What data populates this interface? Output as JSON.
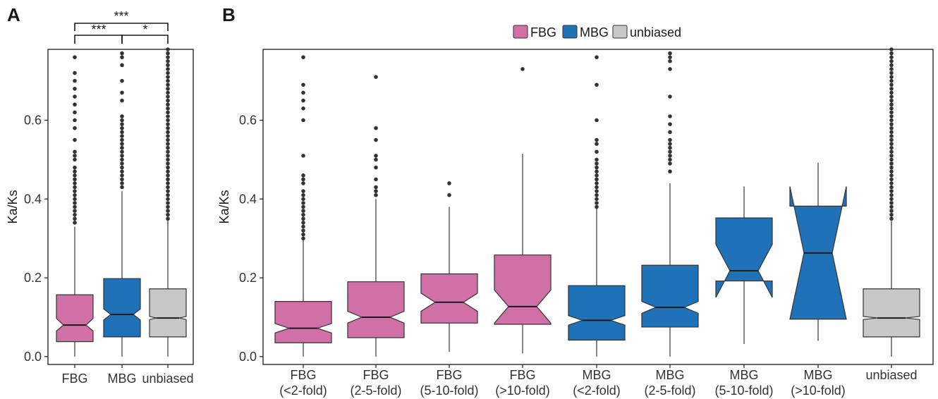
{
  "colors": {
    "FBG": "#d070a6",
    "MBG": "#1f72b8",
    "unbiased": "#c8c8c8",
    "outline": "#333333",
    "outlier": "#333333"
  },
  "panel_labels": [
    "A",
    "B"
  ],
  "legend": [
    "FBG",
    "MBG",
    "unbiased"
  ],
  "significance": [
    {
      "label": "***"
    },
    {
      "label": "***"
    },
    {
      "label": "*"
    }
  ],
  "chart_data": [
    {
      "type": "box",
      "panel": "A",
      "notched": true,
      "ylabel": "Ka/Ks",
      "ylim": [
        -0.02,
        0.78
      ],
      "yticks": [
        0.0,
        0.2,
        0.4,
        0.6
      ],
      "ytick_labels": [
        "0.0",
        "0.2",
        "0.4",
        "0.6"
      ],
      "grid": false,
      "categories": [
        "FBG",
        "MBG",
        "unbiased"
      ],
      "boxes": [
        {
          "group": "FBG",
          "min": 0.0,
          "q1": 0.038,
          "notch_low": 0.065,
          "median": 0.08,
          "notch_high": 0.097,
          "q3": 0.157,
          "whisker_high": 0.33,
          "outliers": [
            0.34,
            0.35,
            0.36,
            0.37,
            0.38,
            0.39,
            0.4,
            0.41,
            0.42,
            0.43,
            0.44,
            0.45,
            0.46,
            0.47,
            0.48,
            0.5,
            0.51,
            0.52,
            0.55,
            0.58,
            0.6,
            0.62,
            0.64,
            0.66,
            0.68,
            0.7,
            0.72,
            0.76
          ]
        },
        {
          "group": "MBG",
          "min": 0.0,
          "q1": 0.05,
          "notch_low": 0.093,
          "median": 0.107,
          "notch_high": 0.121,
          "q3": 0.198,
          "whisker_high": 0.42,
          "outliers": [
            0.43,
            0.44,
            0.45,
            0.46,
            0.47,
            0.48,
            0.49,
            0.5,
            0.51,
            0.52,
            0.53,
            0.54,
            0.55,
            0.56,
            0.57,
            0.58,
            0.59,
            0.6,
            0.61,
            0.65,
            0.67,
            0.7,
            0.74,
            0.76,
            0.77
          ]
        },
        {
          "group": "unbiased",
          "min": 0.0,
          "q1": 0.05,
          "notch_low": 0.094,
          "median": 0.098,
          "notch_high": 0.102,
          "q3": 0.172,
          "whisker_high": 0.35,
          "outliers": [
            0.35,
            0.36,
            0.37,
            0.38,
            0.39,
            0.4,
            0.41,
            0.42,
            0.43,
            0.44,
            0.45,
            0.46,
            0.47,
            0.48,
            0.49,
            0.5,
            0.51,
            0.52,
            0.53,
            0.54,
            0.55,
            0.56,
            0.57,
            0.58,
            0.59,
            0.6,
            0.61,
            0.62,
            0.63,
            0.64,
            0.65,
            0.66,
            0.67,
            0.68,
            0.69,
            0.7,
            0.71,
            0.72,
            0.73,
            0.74,
            0.75,
            0.76,
            0.77,
            0.78
          ]
        }
      ]
    },
    {
      "type": "box",
      "panel": "B",
      "notched": true,
      "ylabel": "Ka/Ks",
      "ylim": [
        -0.02,
        0.78
      ],
      "yticks": [
        0.0,
        0.2,
        0.4,
        0.6
      ],
      "ytick_labels": [
        "0.0",
        "0.2",
        "0.4",
        "0.6"
      ],
      "grid": false,
      "legend_position": "top",
      "categories": [
        [
          "FBG",
          "(<2-fold)"
        ],
        [
          "FBG",
          "(2-5-fold)"
        ],
        [
          "FBG",
          "(5-10-fold)"
        ],
        [
          "FBG",
          "(>10-fold)"
        ],
        [
          "MBG",
          "(<2-fold)"
        ],
        [
          "MBG",
          "(2-5-fold)"
        ],
        [
          "MBG",
          "(5-10-fold)"
        ],
        [
          "MBG",
          "(>10-fold)"
        ],
        [
          "unbiased"
        ]
      ],
      "boxes": [
        {
          "group": "FBG",
          "min": 0.0,
          "q1": 0.035,
          "notch_low": 0.06,
          "median": 0.072,
          "notch_high": 0.084,
          "q3": 0.14,
          "whisker_high": 0.3,
          "outliers": [
            0.3,
            0.31,
            0.32,
            0.33,
            0.34,
            0.35,
            0.36,
            0.37,
            0.38,
            0.39,
            0.4,
            0.41,
            0.42,
            0.44,
            0.45,
            0.46,
            0.51,
            0.6,
            0.63,
            0.65,
            0.67,
            0.69,
            0.76
          ]
        },
        {
          "group": "FBG",
          "min": 0.0,
          "q1": 0.048,
          "notch_low": 0.085,
          "median": 0.1,
          "notch_high": 0.115,
          "q3": 0.19,
          "whisker_high": 0.4,
          "outliers": [
            0.41,
            0.42,
            0.43,
            0.45,
            0.48,
            0.5,
            0.51,
            0.55,
            0.58,
            0.71
          ]
        },
        {
          "group": "FBG",
          "min": 0.012,
          "q1": 0.085,
          "notch_low": 0.115,
          "median": 0.138,
          "notch_high": 0.161,
          "q3": 0.21,
          "whisker_high": 0.38,
          "outliers": [
            0.41,
            0.44
          ]
        },
        {
          "group": "FBG",
          "min": 0.008,
          "q1": 0.082,
          "notch_low": 0.085,
          "median": 0.127,
          "notch_high": 0.169,
          "q3": 0.258,
          "whisker_high": 0.515,
          "outliers": [
            0.73
          ]
        },
        {
          "group": "MBG",
          "min": 0.0,
          "q1": 0.042,
          "notch_low": 0.08,
          "median": 0.092,
          "notch_high": 0.104,
          "q3": 0.18,
          "whisker_high": 0.38,
          "outliers": [
            0.38,
            0.39,
            0.4,
            0.41,
            0.42,
            0.43,
            0.44,
            0.45,
            0.46,
            0.47,
            0.48,
            0.49,
            0.5,
            0.52,
            0.54,
            0.55,
            0.6,
            0.69,
            0.76
          ]
        },
        {
          "group": "MBG",
          "min": 0.0,
          "q1": 0.075,
          "notch_low": 0.11,
          "median": 0.125,
          "notch_high": 0.14,
          "q3": 0.232,
          "whisker_high": 0.44,
          "outliers": [
            0.47,
            0.49,
            0.5,
            0.51,
            0.52,
            0.53,
            0.54,
            0.55,
            0.57,
            0.59,
            0.61,
            0.66,
            0.73,
            0.75,
            0.76,
            0.77
          ]
        },
        {
          "group": "MBG",
          "min": 0.032,
          "q1": 0.192,
          "notch_low": 0.15,
          "median": 0.218,
          "notch_high": 0.285,
          "q3": 0.352,
          "whisker_high": 0.432,
          "outliers": []
        },
        {
          "group": "MBG",
          "min": 0.04,
          "q1": 0.095,
          "notch_low": 0.095,
          "median": 0.263,
          "notch_high": 0.432,
          "q3": 0.382,
          "whisker_high": 0.492,
          "outliers": []
        },
        {
          "group": "unbiased",
          "min": 0.0,
          "q1": 0.05,
          "notch_low": 0.094,
          "median": 0.098,
          "notch_high": 0.102,
          "q3": 0.172,
          "whisker_high": 0.35,
          "outliers": [
            0.35,
            0.36,
            0.37,
            0.38,
            0.39,
            0.4,
            0.41,
            0.42,
            0.43,
            0.44,
            0.45,
            0.46,
            0.47,
            0.48,
            0.49,
            0.5,
            0.51,
            0.52,
            0.53,
            0.54,
            0.55,
            0.56,
            0.57,
            0.58,
            0.59,
            0.6,
            0.61,
            0.62,
            0.63,
            0.64,
            0.65,
            0.66,
            0.67,
            0.68,
            0.69,
            0.7,
            0.71,
            0.72,
            0.73,
            0.74,
            0.75,
            0.76,
            0.77,
            0.78
          ]
        }
      ]
    }
  ]
}
